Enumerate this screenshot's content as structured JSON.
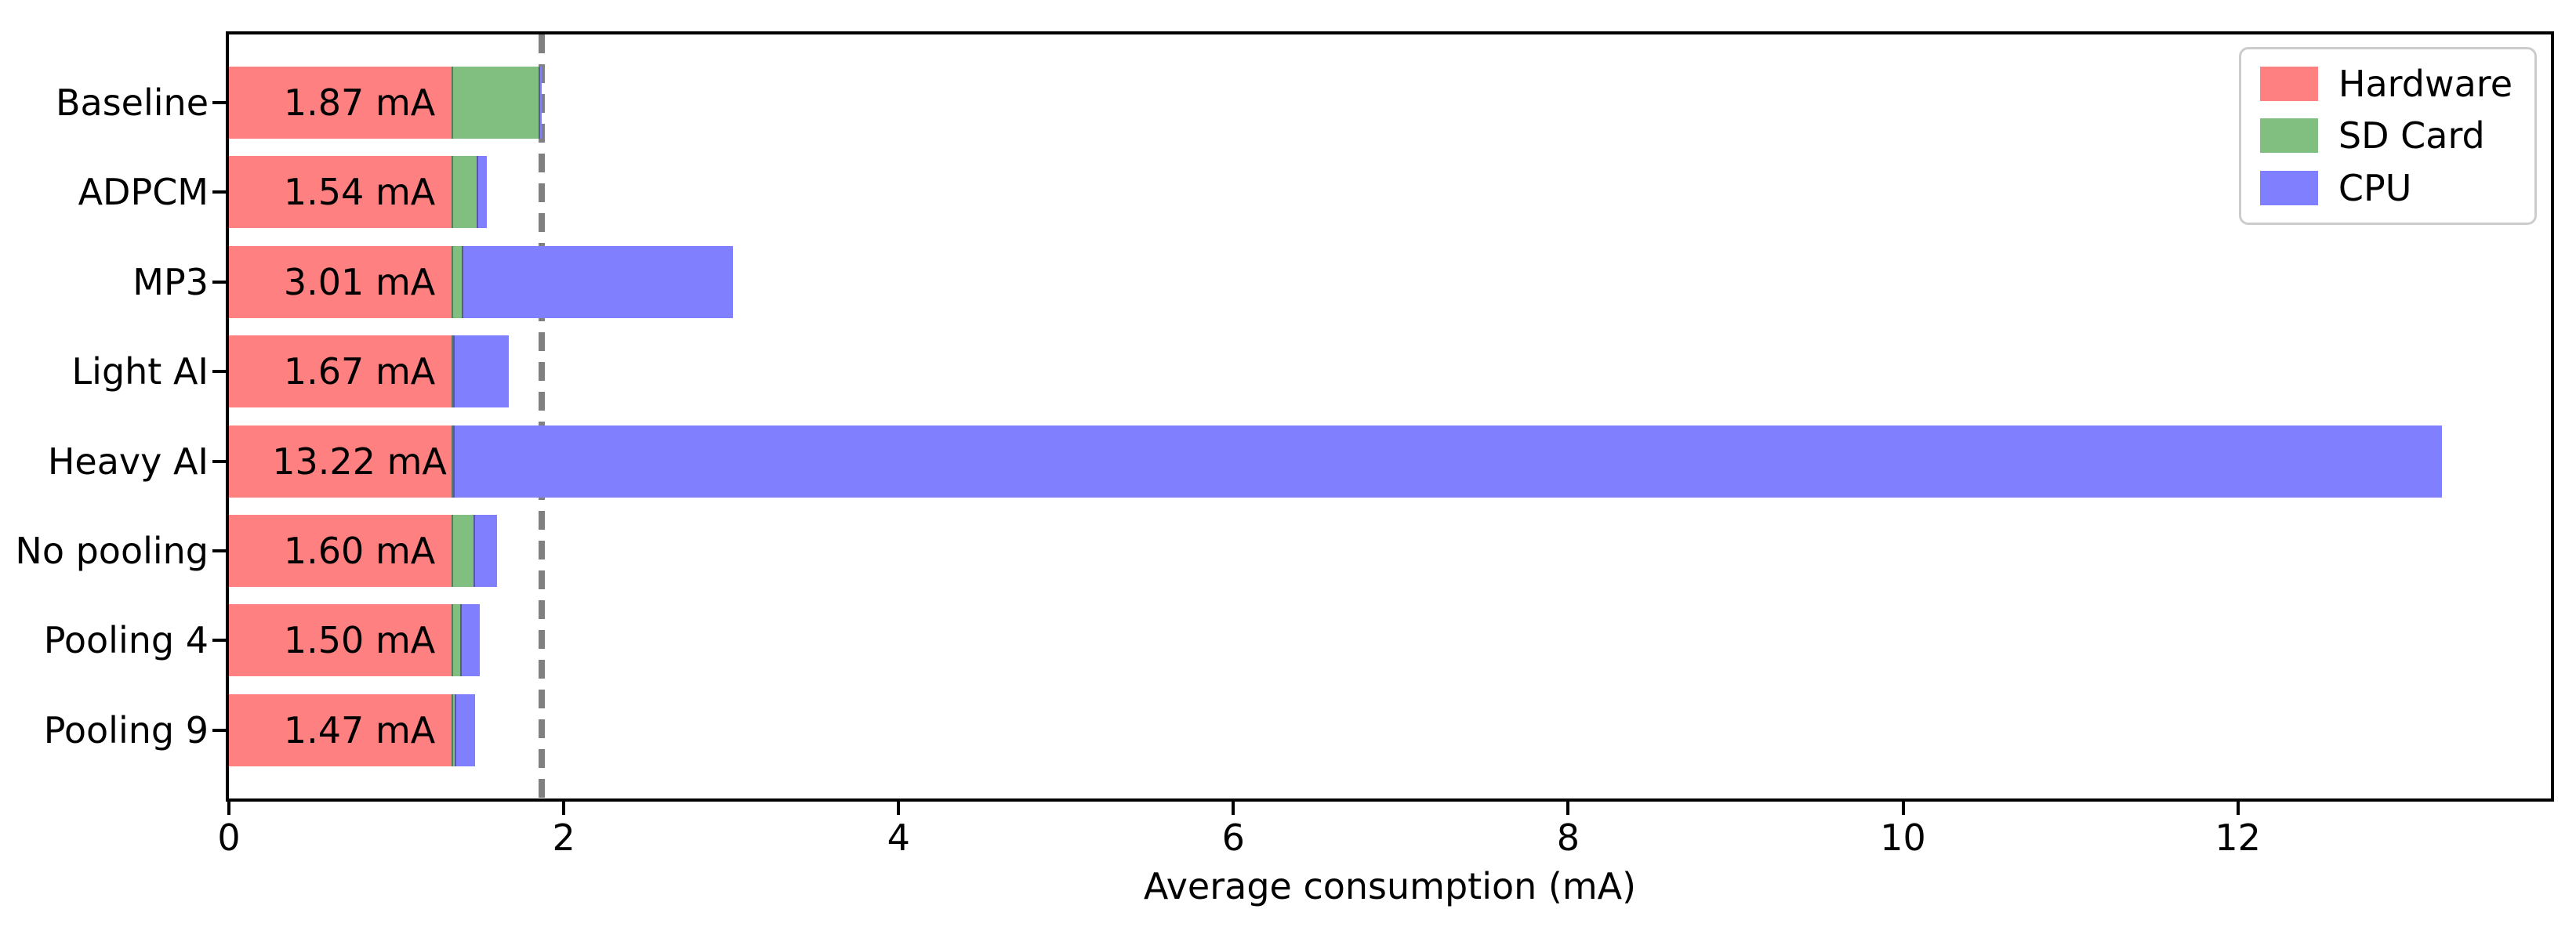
{
  "figure": {
    "background": "#ffffff"
  },
  "chart_data": {
    "type": "bar",
    "orientation": "horizontal",
    "stacked": true,
    "title": "",
    "xlabel": "Average consumption (mA)",
    "ylabel": "",
    "categories": [
      "Baseline",
      "ADPCM",
      "MP3",
      "Light AI",
      "Heavy AI",
      "No pooling",
      "Pooling 4",
      "Pooling 9"
    ],
    "series": [
      {
        "name": "Hardware",
        "color": "#ff8080",
        "values": [
          1.33,
          1.33,
          1.33,
          1.33,
          1.33,
          1.33,
          1.33,
          1.33
        ]
      },
      {
        "name": "SD Card",
        "color": "#80bf80",
        "values": [
          0.52,
          0.15,
          0.06,
          0.01,
          0.01,
          0.13,
          0.05,
          0.02
        ]
      },
      {
        "name": "CPU",
        "color": "#8080ff",
        "values": [
          0.02,
          0.06,
          1.62,
          0.33,
          11.88,
          0.14,
          0.12,
          0.12
        ]
      }
    ],
    "totals": [
      1.87,
      1.54,
      3.01,
      1.67,
      13.22,
      1.6,
      1.5,
      1.47
    ],
    "bar_labels": [
      "1.87 mA",
      "1.54 mA",
      "3.01 mA",
      "1.67 mA",
      "13.22 mA",
      "1.60 mA",
      "1.50 mA",
      "1.47 mA"
    ],
    "xticks": [
      "0",
      "2",
      "4",
      "6",
      "8",
      "10",
      "12"
    ],
    "xtick_values": [
      0,
      2,
      4,
      6,
      8,
      10,
      12
    ],
    "xlim": [
      0,
      13.87
    ],
    "grid": false,
    "reference_line": {
      "value": 1.87,
      "style": "dashed",
      "color": "#808080"
    },
    "legend": {
      "position": "upper right",
      "entries": [
        "Hardware",
        "SD Card",
        "CPU"
      ]
    }
  },
  "colors": {
    "hardware": "#ff8080",
    "sd_card": "#80bf80",
    "cpu": "#8080ff",
    "reference_line": "#808080",
    "spine": "#000000",
    "legend_border": "#cccccc",
    "text": "#000000"
  }
}
